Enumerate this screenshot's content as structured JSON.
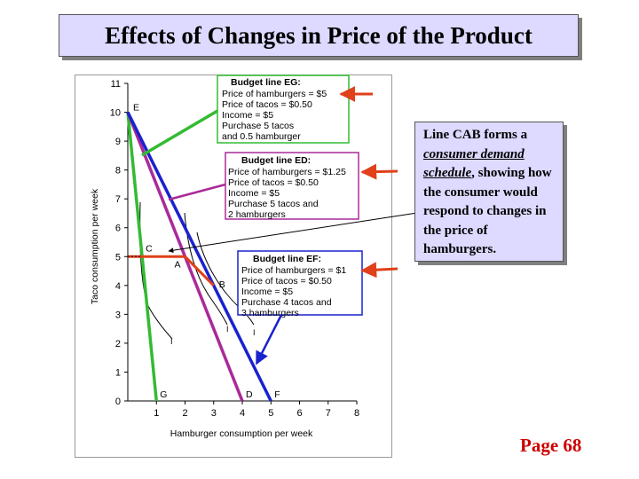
{
  "title": "Effects of Changes in Price of the Product",
  "chart_data": {
    "type": "line",
    "xlabel": "Hamburger consumption per week",
    "ylabel": "Taco consumption per week",
    "xlim": [
      0,
      8
    ],
    "ylim": [
      0,
      11
    ],
    "x_ticks": [
      "1",
      "2",
      "3",
      "4",
      "5",
      "6",
      "7",
      "8"
    ],
    "y_ticks": [
      "0",
      "1",
      "2",
      "3",
      "4",
      "5",
      "6",
      "7",
      "8",
      "9",
      "10",
      "11"
    ],
    "series": [
      {
        "name": "Budget line EG",
        "color": "#33bb33",
        "points": [
          [
            0,
            10
          ],
          [
            1,
            0
          ]
        ]
      },
      {
        "name": "Budget line ED",
        "color": "#aa2a9a",
        "points": [
          [
            0,
            10
          ],
          [
            4,
            0
          ]
        ]
      },
      {
        "name": "Budget line EF",
        "color": "#1a22cc",
        "points": [
          [
            0,
            10
          ],
          [
            5,
            0
          ]
        ]
      }
    ],
    "consumer_demand_line": {
      "color": "#e0401a",
      "points": [
        [
          0,
          5
        ],
        [
          2,
          5
        ],
        [
          3,
          4
        ]
      ]
    },
    "points": [
      {
        "label": "E",
        "x": 0,
        "y": 10
      },
      {
        "label": "C",
        "x": 0.5,
        "y": 5
      },
      {
        "label": "A",
        "x": 2,
        "y": 5
      },
      {
        "label": "B",
        "x": 3,
        "y": 4
      },
      {
        "label": "G",
        "x": 1,
        "y": 0
      },
      {
        "label": "D",
        "x": 4,
        "y": 0
      },
      {
        "label": "F",
        "x": 5,
        "y": 0
      }
    ],
    "curve_labels": [
      "I",
      "I",
      "I"
    ]
  },
  "boxes": [
    {
      "title": "Budget line EG:",
      "lines": [
        "Price of hamburgers = $5",
        "Price of tacos = $0.50",
        "Income = $5",
        "Purchase 5 tacos",
        "  and 0.5 hamburger"
      ],
      "color": "#33bb33"
    },
    {
      "title": "Budget line ED:",
      "lines": [
        "Price of hamburgers = $1.25",
        "Price of tacos = $0.50",
        "Income = $5",
        "Purchase 5 tacos and",
        "  2 hamburgers"
      ],
      "color": "#aa2a9a"
    },
    {
      "title": "Budget line EF:",
      "lines": [
        "Price of hamburgers = $1",
        "Price of tacos = $0.50",
        "Income = $5",
        "Purchase 4 tacos and",
        "  3 hamburgers"
      ],
      "color": "#1a22cc"
    }
  ],
  "callout": {
    "part1": "Line CAB forms a ",
    "emph": "consumer demand schedule",
    "part2": ", showing how the consumer would respond to changes in the price of hamburgers."
  },
  "page_label": "Page 68",
  "colors": {
    "arrow": "#e0401a",
    "title_bg": "#ddd9ff"
  }
}
